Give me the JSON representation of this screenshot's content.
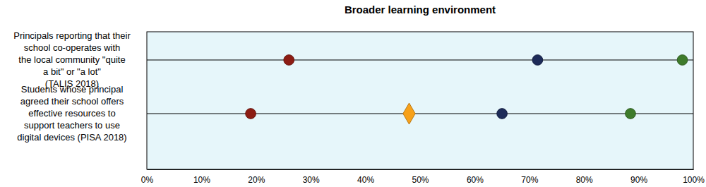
{
  "chart_data": {
    "type": "dot",
    "title": "Broader learning environment",
    "categories": [
      "Principals reporting that their\nschool co-operates with\nthe local community \"quite\na bit\" or \"a lot\"\n(TALIS 2018)",
      "Students whose principal\nagreed their school offers\neffective resources to\nsupport teachers to use\ndigital devices (PISA 2018)"
    ],
    "series": [
      {
        "color": "#8c1c13",
        "marker": "circle",
        "values": [
          26,
          19
        ]
      },
      {
        "color": "#f7a11a",
        "marker": "diamond",
        "values": [
          null,
          48
        ]
      },
      {
        "color": "#1d2b58",
        "marker": "circle",
        "values": [
          71.5,
          65
        ]
      },
      {
        "color": "#3e7b2b",
        "marker": "circle",
        "values": [
          98,
          88.5
        ]
      }
    ],
    "xlim": [
      0,
      100
    ],
    "xticks": [
      {
        "value": 0,
        "label": "0%"
      },
      {
        "value": 10,
        "label": "10%"
      },
      {
        "value": 20,
        "label": "20%"
      },
      {
        "value": 30,
        "label": "30%"
      },
      {
        "value": 40,
        "label": "40%"
      },
      {
        "value": 50,
        "label": "50%"
      },
      {
        "value": 60,
        "label": "60%"
      },
      {
        "value": 70,
        "label": "70%"
      },
      {
        "value": 80,
        "label": "80%"
      },
      {
        "value": 90,
        "label": "90%"
      },
      {
        "value": 100,
        "label": "100%"
      }
    ],
    "grid": true
  }
}
